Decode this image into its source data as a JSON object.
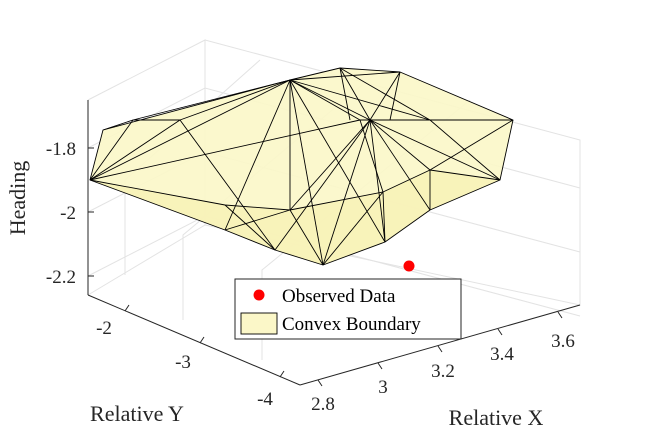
{
  "chart_data": {
    "type": "scatter3d",
    "xlabel": "Relative X",
    "ylabel": "Relative Y",
    "zlabel": "Heading",
    "x_ticks": [
      "2.8",
      "3",
      "3.2",
      "3.4",
      "3.6"
    ],
    "y_ticks": [
      "-2",
      "-3",
      "-4"
    ],
    "z_ticks": [
      "-1.8",
      "-2",
      "-2.2"
    ],
    "grid": true,
    "legend_placement": "bottom-center",
    "series": [
      {
        "name": "Observed Data",
        "kind": "points",
        "color": "#ff0000",
        "points": [
          {
            "x": 3.3,
            "y": -3.6,
            "z": -2.25
          }
        ]
      },
      {
        "name": "Convex Boundary",
        "kind": "surface",
        "face_color": "#fbf7c8",
        "edge_color": "#000000"
      }
    ]
  }
}
